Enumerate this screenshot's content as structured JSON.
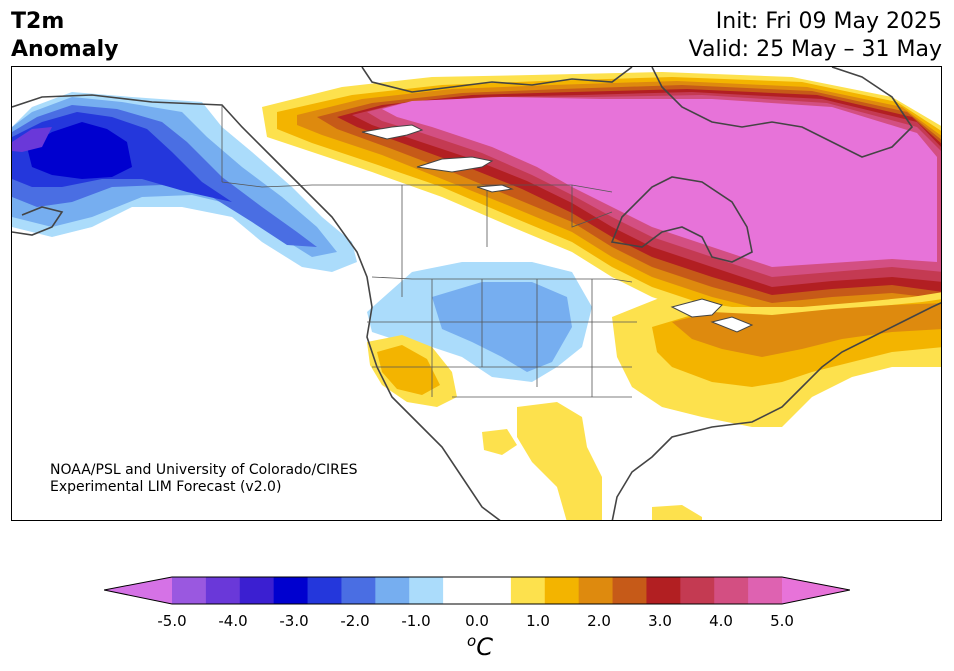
{
  "header": {
    "title_line1": "T2m",
    "title_line2": "Anomaly",
    "init": "Init: Fri 09 May 2025",
    "valid": "Valid: 25 May – 31 May"
  },
  "credit": {
    "line1": "NOAA/PSL and University of Colorado/CIRES",
    "line2": "Experimental LIM Forecast (v2.0)"
  },
  "colorbar": {
    "unit_symbol": "C",
    "unit_prefix": "o",
    "ticks": [
      "-5.0",
      "-4.0",
      "-3.0",
      "-2.0",
      "-1.0",
      "0.0",
      "1.0",
      "2.0",
      "3.0",
      "4.0",
      "5.0"
    ],
    "min_color": "#d572e6",
    "max_color": "#e773d9",
    "colors": [
      "#d572e6",
      "#9a58e0",
      "#6a38d9",
      "#3b1fd1",
      "#0000cf",
      "#2437dc",
      "#4a6ee3",
      "#76aef0",
      "#abdcfb",
      "#ffffff",
      "#ffffff",
      "#fde14d",
      "#f3b400",
      "#de8a0e",
      "#c65a18",
      "#b21f22",
      "#c43a52",
      "#d34f82",
      "#de62b1",
      "#e773d9"
    ]
  },
  "map": {
    "field": "T2m Anomaly",
    "ocean_color": "#ffffff",
    "coast_color": "#444444"
  }
}
